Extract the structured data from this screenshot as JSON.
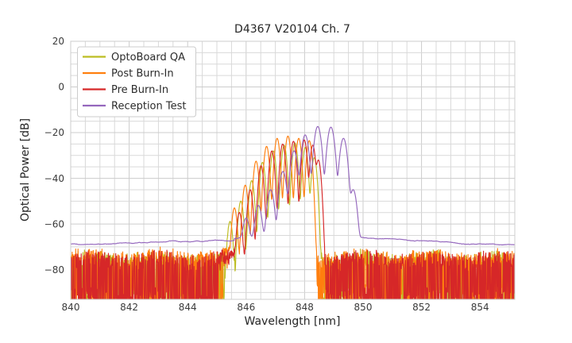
{
  "chart_data": {
    "type": "line",
    "title": "D4367 V20104 Ch. 7",
    "xlabel": "Wavelength [nm]",
    "ylabel": "Optical Power [dB]",
    "xlim": [
      840,
      855.19
    ],
    "ylim": [
      -93,
      20
    ],
    "grid": {
      "on": true,
      "minor_x_step_nm": 0.5,
      "minor_y_step_db": 5,
      "major_color": "#cccccc",
      "minor_color": "#d9d9d9"
    },
    "legend_position": "upper left",
    "xticks": [
      {
        "v": 840,
        "label": "840"
      },
      {
        "v": 842,
        "label": "842"
      },
      {
        "v": 844,
        "label": "844"
      },
      {
        "v": 846,
        "label": "846"
      },
      {
        "v": 848,
        "label": "848"
      },
      {
        "v": 850,
        "label": "850"
      },
      {
        "v": 852,
        "label": "852"
      },
      {
        "v": 854,
        "label": "854"
      }
    ],
    "yticks": [
      {
        "v": 20,
        "label": "20"
      },
      {
        "v": 0,
        "label": "0"
      },
      {
        "v": -20,
        "label": "−20"
      },
      {
        "v": -40,
        "label": "−40"
      },
      {
        "v": -60,
        "label": "−60"
      },
      {
        "v": -80,
        "label": "−80"
      }
    ],
    "series": [
      {
        "name": "OptoBoard QA",
        "color": "#bcbd22",
        "seed": 7,
        "mode_sigma_nm": 0.05,
        "noise": {
          "type": "spiky",
          "top_db": -72.5,
          "deep_prob": 0.5,
          "gap": [
            845.75,
            848.6
          ]
        },
        "peaks": [
          [
            845.45,
            -59
          ],
          [
            845.82,
            -50
          ],
          [
            846.19,
            -41
          ],
          [
            846.56,
            -33
          ],
          [
            846.93,
            -28
          ],
          [
            847.3,
            -25.5
          ],
          [
            847.67,
            -24.5
          ],
          [
            848.02,
            -26.5
          ],
          [
            848.33,
            -31
          ]
        ]
      },
      {
        "name": "Post Burn-In",
        "color": "#ff7f0e",
        "seed": 23,
        "mode_sigma_nm": 0.05,
        "noise": {
          "type": "spiky",
          "top_db": -71.8,
          "deep_prob": 0.5,
          "gap": [
            845.2,
            848.42
          ]
        },
        "peaks": [
          [
            845.6,
            -53
          ],
          [
            845.97,
            -43
          ],
          [
            846.34,
            -32.5
          ],
          [
            846.7,
            -26
          ],
          [
            847.06,
            -22.5
          ],
          [
            847.43,
            -21.5
          ],
          [
            847.8,
            -22.5
          ],
          [
            848.16,
            -23.5
          ]
        ]
      },
      {
        "name": "Pre Burn-In",
        "color": "#d62728",
        "seed": 41,
        "mode_sigma_nm": 0.05,
        "noise": {
          "type": "spiky",
          "top_db": -72.6,
          "deep_prob": 0.55,
          "gap": [
            845.05,
            848.65
          ],
          "deep_spike_at_nm": 846.3
        },
        "peaks": [
          [
            845.77,
            -55
          ],
          [
            846.14,
            -45
          ],
          [
            846.51,
            -34.5
          ],
          [
            846.88,
            -28
          ],
          [
            847.25,
            -25
          ],
          [
            847.62,
            -23.8
          ],
          [
            847.99,
            -23.2
          ],
          [
            848.28,
            -25.5
          ],
          [
            848.47,
            -32
          ]
        ]
      },
      {
        "name": "Reception Test",
        "color": "#9467bd",
        "seed": 77,
        "mode_sigma_nm": 0.068,
        "noise": {
          "type": "smooth",
          "left_level_db": -68.7,
          "left_slope_db_per_nm": 0.26,
          "break_nm": 845.6,
          "mid_level_db": -66.3,
          "right_start_nm": 850,
          "right_slope_db_per_nm": -0.62
        },
        "peaks": [
          [
            846.0,
            -58
          ],
          [
            846.42,
            -52
          ],
          [
            846.84,
            -45
          ],
          [
            847.26,
            -37
          ],
          [
            847.64,
            -28
          ],
          [
            848.02,
            -21
          ],
          [
            848.45,
            -17.3
          ],
          [
            848.9,
            -17.6
          ],
          [
            849.33,
            -22.5
          ],
          [
            849.66,
            -45
          ]
        ]
      }
    ]
  }
}
